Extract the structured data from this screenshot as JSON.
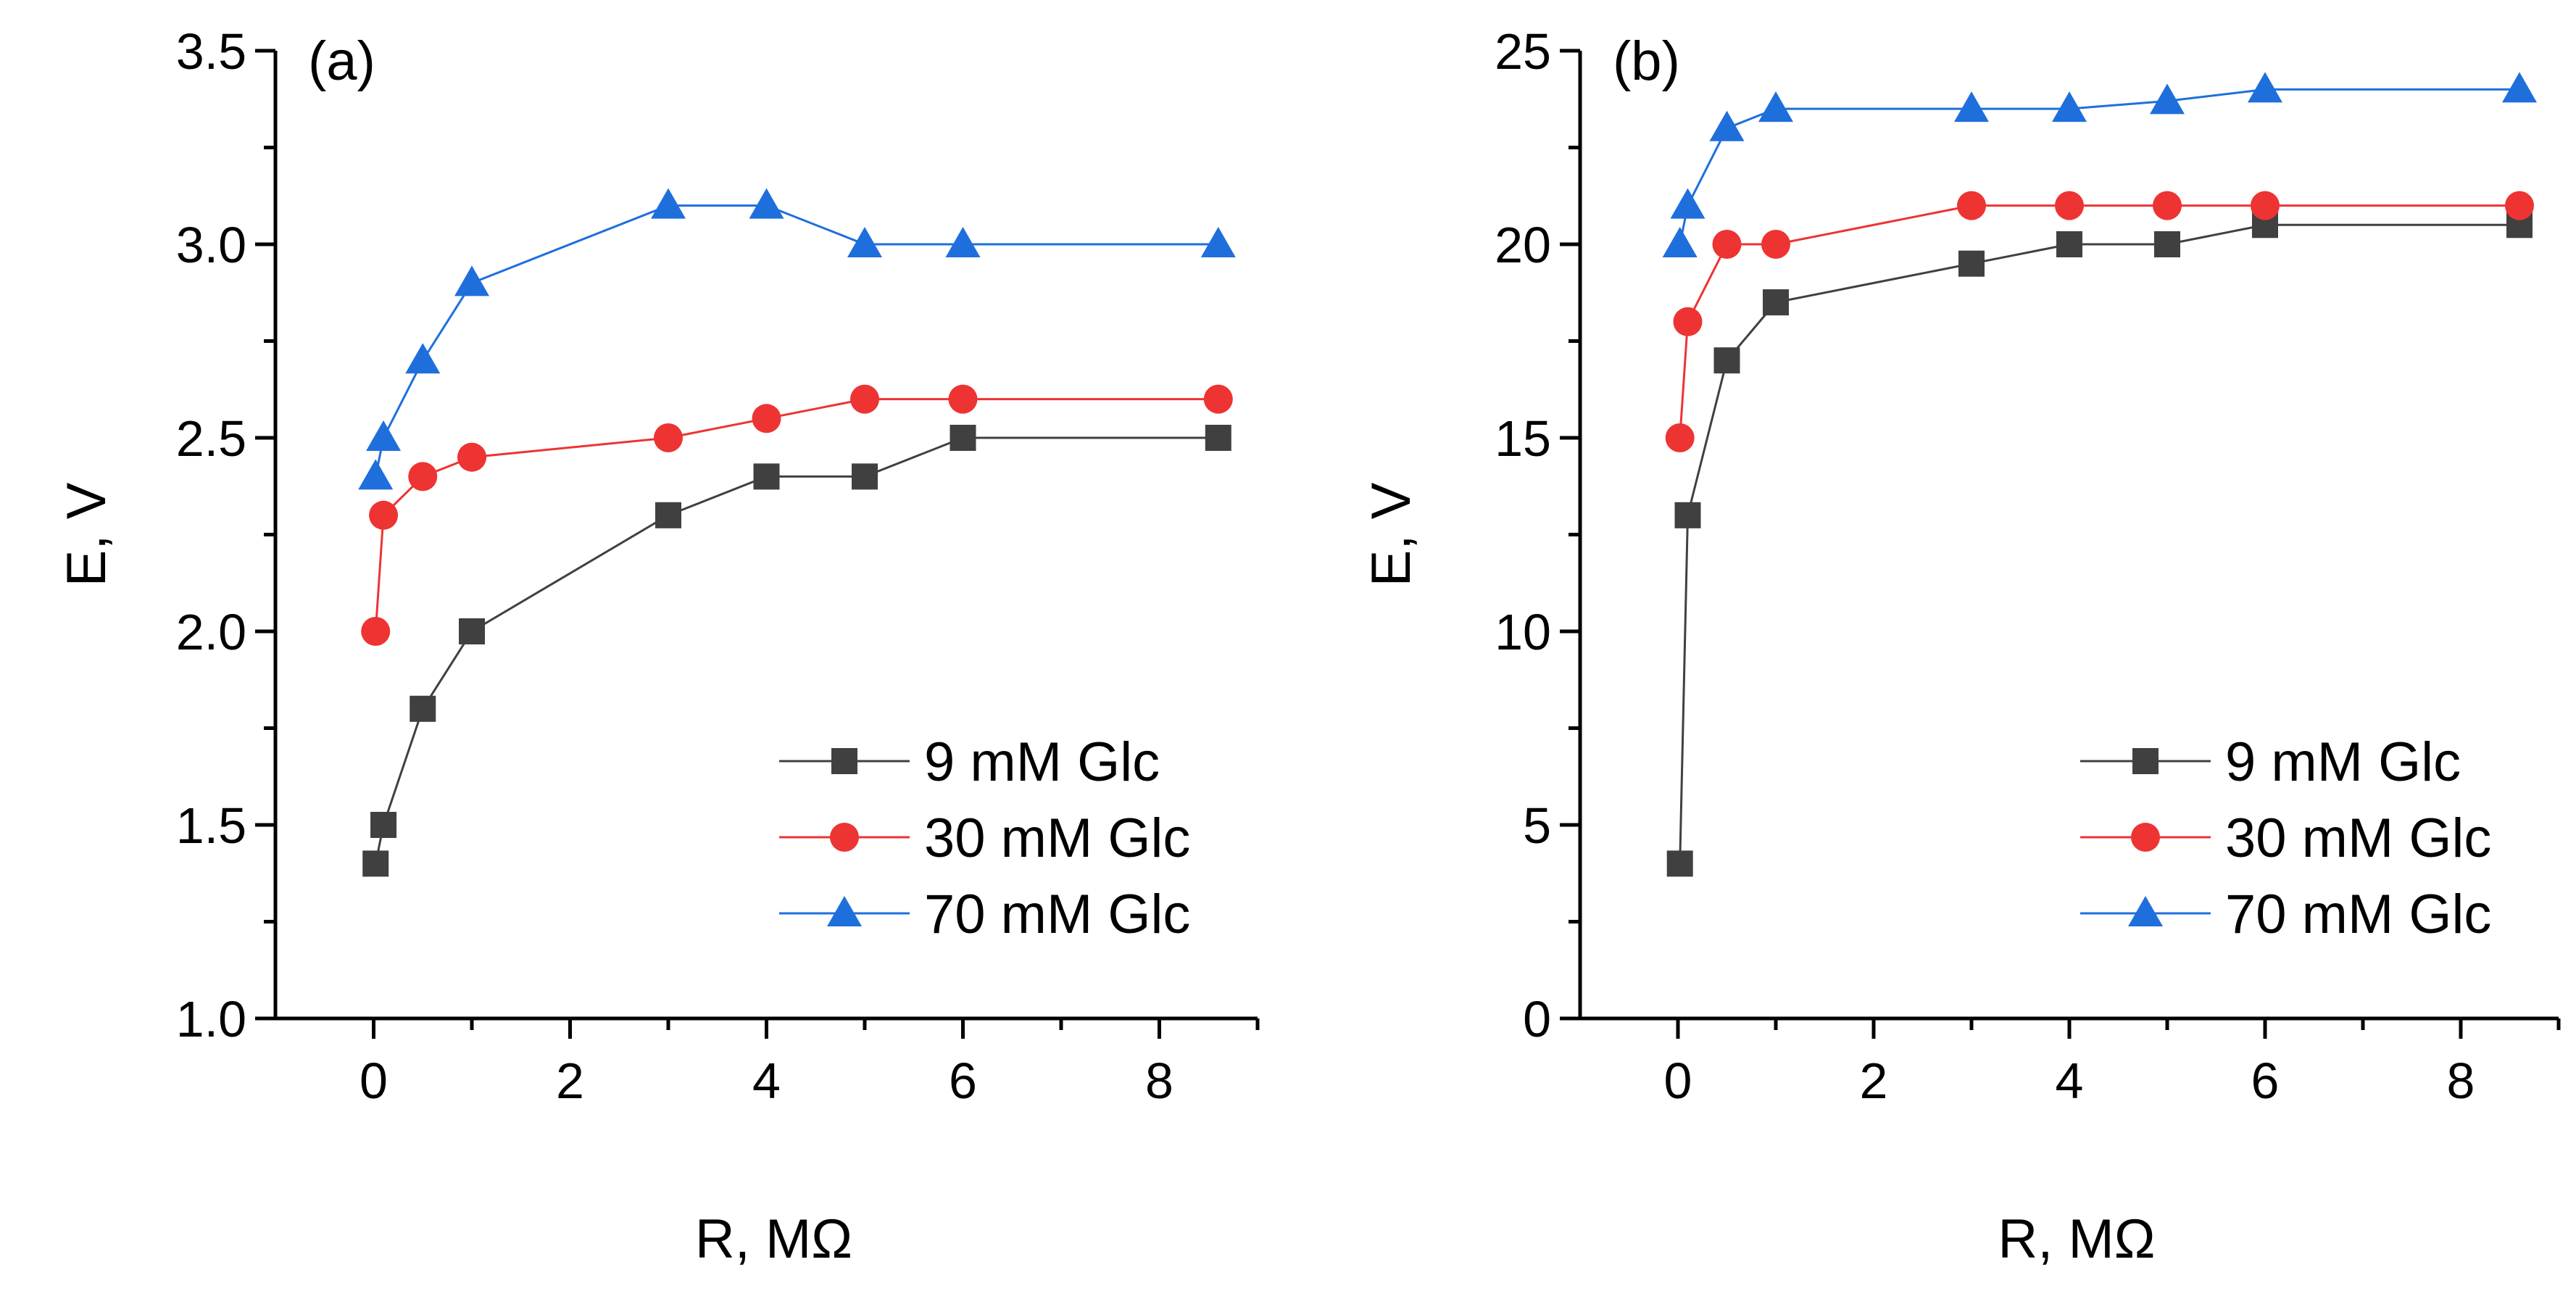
{
  "chart_data": [
    {
      "type": "line",
      "panel_label": "(a)",
      "xlabel": "R, MΩ",
      "ylabel": "E, V",
      "xlim": [
        -1,
        9
      ],
      "ylim": [
        1.0,
        3.5
      ],
      "x_ticks": [
        0,
        2,
        4,
        6,
        8
      ],
      "x_tick_labels": [
        "0",
        "2",
        "4",
        "6",
        "8"
      ],
      "y_ticks": [
        1.0,
        1.5,
        2.0,
        2.5,
        3.0,
        3.5
      ],
      "y_tick_labels": [
        "1.0",
        "1.5",
        "2.0",
        "2.5",
        "3.0",
        "3.5"
      ],
      "grid": false,
      "legend_position": "bottom-right",
      "series": [
        {
          "name": "9 mM Glc",
          "color": "#404040",
          "marker": "square",
          "x": [
            0.02,
            0.1,
            0.5,
            1,
            3,
            4,
            5,
            6,
            8.6
          ],
          "values": [
            1.4,
            1.5,
            1.8,
            2.0,
            2.3,
            2.4,
            2.4,
            2.5,
            2.5
          ]
        },
        {
          "name": "30 mM Glc",
          "color": "#ee3333",
          "marker": "circle",
          "x": [
            0.02,
            0.1,
            0.5,
            1,
            3,
            4,
            5,
            6,
            8.6
          ],
          "values": [
            2.0,
            2.3,
            2.4,
            2.45,
            2.5,
            2.55,
            2.6,
            2.6,
            2.6
          ]
        },
        {
          "name": "70 mM Glc",
          "color": "#1e6fdc",
          "marker": "triangle",
          "x": [
            0.02,
            0.1,
            0.5,
            1,
            3,
            4,
            5,
            6,
            8.6
          ],
          "values": [
            2.4,
            2.5,
            2.7,
            2.9,
            3.1,
            3.1,
            3.0,
            3.0,
            3.0
          ]
        }
      ]
    },
    {
      "type": "line",
      "panel_label": "(b)",
      "xlabel": "R, MΩ",
      "ylabel": "E, V",
      "xlim": [
        -1,
        9
      ],
      "ylim": [
        0,
        25
      ],
      "x_ticks": [
        0,
        2,
        4,
        6,
        8
      ],
      "x_tick_labels": [
        "0",
        "2",
        "4",
        "6",
        "8"
      ],
      "y_ticks": [
        0,
        5,
        10,
        15,
        20,
        25
      ],
      "y_tick_labels": [
        "0",
        "5",
        "10",
        "15",
        "20",
        "25"
      ],
      "grid": false,
      "legend_position": "bottom-right",
      "series": [
        {
          "name": "9 mM Glc",
          "color": "#404040",
          "marker": "square",
          "x": [
            0.02,
            0.1,
            0.5,
            1,
            3,
            4,
            5,
            6,
            8.6
          ],
          "values": [
            4,
            13,
            17,
            18.5,
            19.5,
            20,
            20,
            20.5,
            20.5
          ]
        },
        {
          "name": "30 mM Glc",
          "color": "#ee3333",
          "marker": "circle",
          "x": [
            0.02,
            0.1,
            0.5,
            1,
            3,
            4,
            5,
            6,
            8.6
          ],
          "values": [
            15,
            18,
            20,
            20,
            21,
            21,
            21,
            21,
            21
          ]
        },
        {
          "name": "70 mM Glc",
          "color": "#1e6fdc",
          "marker": "triangle",
          "x": [
            0.02,
            0.1,
            0.5,
            1,
            3,
            4,
            5,
            6,
            8.6
          ],
          "values": [
            20,
            21,
            23,
            23.5,
            23.5,
            23.5,
            23.7,
            24,
            24
          ]
        }
      ]
    }
  ]
}
